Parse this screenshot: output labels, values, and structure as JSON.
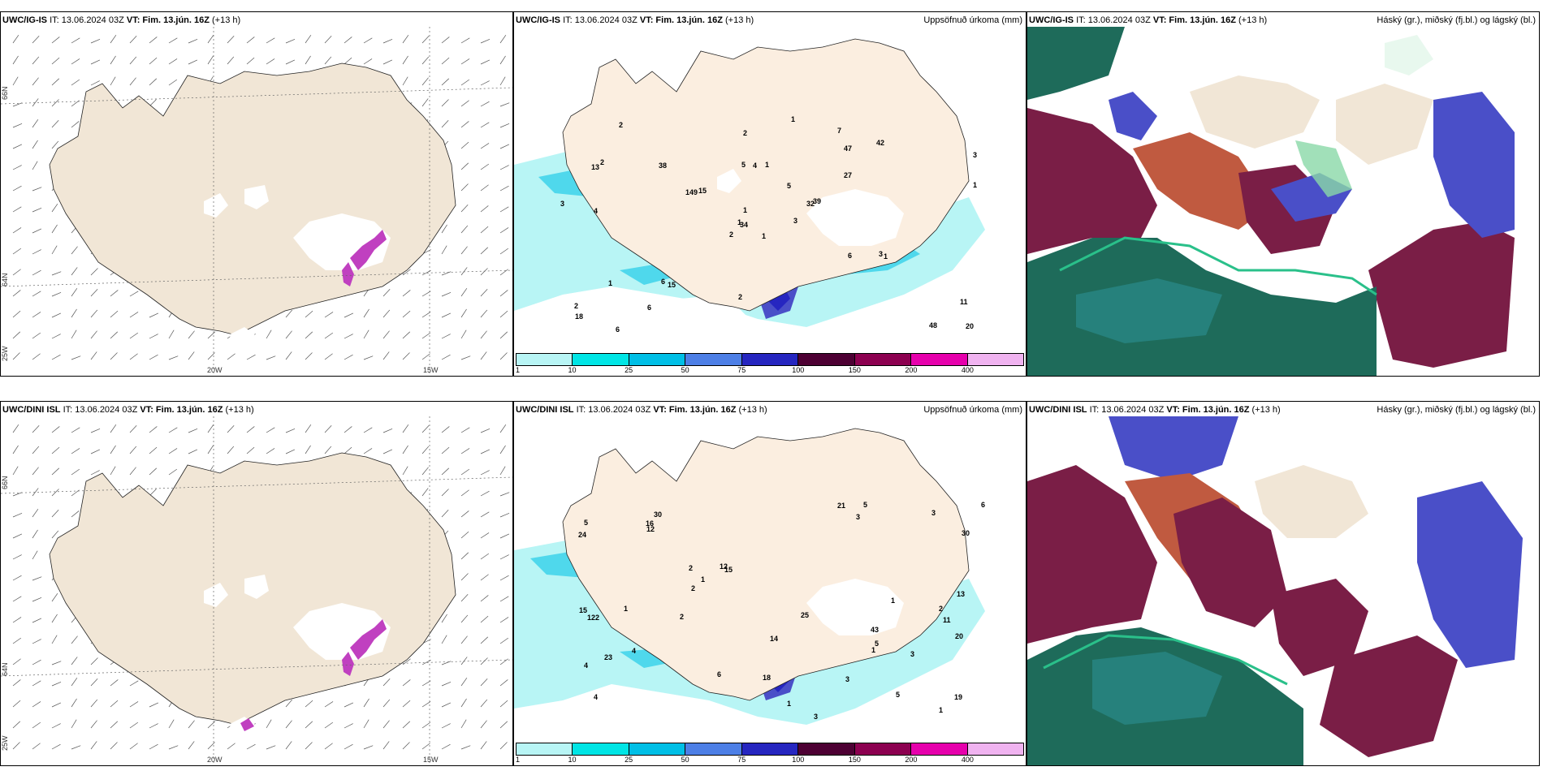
{
  "panels": {
    "p1": {
      "model": "UWC/IG-IS",
      "it": "IT: 13.06.2024 03Z",
      "vt_label": "VT:",
      "vt": "Fim. 13.jún. 16Z",
      "lead": "(+13 h)",
      "right_title": ""
    },
    "p2": {
      "model": "UWC/IG-IS",
      "it": "IT: 13.06.2024 03Z",
      "vt_label": "VT:",
      "vt": "Fim. 13.jún. 16Z",
      "lead": "(+13 h)",
      "right_title": "Uppsöfnuð úrkoma (mm)"
    },
    "p3": {
      "model": "UWC/IG-IS",
      "it": "IT: 13.06.2024 03Z",
      "vt_label": "VT:",
      "vt": "Fim. 13.jún. 16Z",
      "lead": "(+13 h)",
      "right_title": "Háský (gr.), miðský (fj.bl.) og lágský (bl.)"
    },
    "p4": {
      "model": "UWC/DINI ISL",
      "it": "IT: 13.06.2024 03Z",
      "vt_label": "VT:",
      "vt": "Fim. 13.jún. 16Z",
      "lead": "(+13 h)",
      "right_title": ""
    },
    "p5": {
      "model": "UWC/DINI ISL",
      "it": "IT: 13.06.2024 03Z",
      "vt_label": "VT:",
      "vt": "Fim. 13.jún. 16Z",
      "lead": "(+13 h)",
      "right_title": "Uppsöfnuð úrkoma (mm)"
    },
    "p6": {
      "model": "UWC/DINI ISL",
      "it": "IT: 13.06.2024 03Z",
      "vt_label": "VT:",
      "vt": "Fim. 13.jún. 16Z",
      "lead": "(+13 h)",
      "right_title": "Hásky (gr.), miðský (fj.bl.) og lágský (bl.)"
    }
  },
  "axis_labels": {
    "lat66": "66N",
    "lat64": "64N",
    "lon25": "25W",
    "lon20": "20W",
    "lon15": "15W"
  },
  "colorbar": {
    "labels": [
      "1",
      "10",
      "25",
      "50",
      "75",
      "100",
      "150",
      "200",
      "400"
    ],
    "colors": [
      "#b8f5f5",
      "#00e5e5",
      "#00bfe6",
      "#4d7fe6",
      "#2626c0",
      "#4d0033",
      "#8c0050",
      "#e600ac",
      "#f0b3f0"
    ]
  },
  "colors": {
    "land": "#f1e6d6",
    "snow": "#ffffff",
    "rain_light": "#b8f5f5",
    "rain_mid": "#4fd8ec",
    "high_cloud": "#1e6b5a",
    "mid_cloud": "#7a1e46",
    "low_cloud": "#4a4fc8"
  },
  "precip_values_ig": [
    "1",
    "13",
    "34",
    "2",
    "32",
    "15",
    "7",
    "1",
    "47",
    "3",
    "2",
    "20",
    "4",
    "3",
    "2",
    "27",
    "6",
    "5",
    "5",
    "1",
    "15",
    "18",
    "6",
    "4",
    "39",
    "1",
    "2",
    "2",
    "3",
    "6",
    "1",
    "1",
    "2",
    "1",
    "38",
    "42",
    "6",
    "48",
    "11",
    "3",
    "1",
    "149"
  ],
  "precip_values_dini": [
    "43",
    "11",
    "4",
    "30",
    "15",
    "5",
    "4",
    "3",
    "2",
    "3",
    "24",
    "15",
    "5",
    "19",
    "6",
    "13",
    "14",
    "25",
    "12",
    "4",
    "6",
    "3",
    "2",
    "20",
    "21",
    "16",
    "5",
    "122",
    "12",
    "1",
    "1",
    "3",
    "1",
    "2",
    "2",
    "3",
    "1",
    "1",
    "18",
    "23",
    "30",
    "5",
    "1"
  ]
}
